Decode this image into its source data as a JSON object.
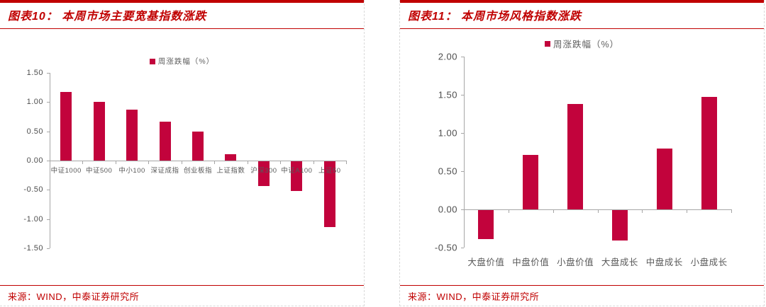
{
  "accent_color": "#C00000",
  "bar_color": "#C2033C",
  "panels": [
    {
      "title": "图表10：  本周市场主要宽基指数涨跌",
      "legend_label": "周涨跌幅（%）",
      "source": "来源：WIND，中泰证券研究所",
      "chart_data": {
        "type": "bar",
        "title": "本周市场主要宽基指数涨跌",
        "series_name": "周涨跌幅（%）",
        "categories": [
          "中证1000",
          "中证500",
          "中小100",
          "深证成指",
          "创业板指",
          "上证指数",
          "沪深300",
          "中证A100",
          "上证50"
        ],
        "values": [
          1.17,
          1.0,
          0.87,
          0.67,
          0.5,
          0.11,
          -0.42,
          -0.51,
          -1.12
        ],
        "ylabel": "",
        "xlabel": "",
        "ylim": [
          -1.5,
          1.5
        ],
        "ytick_step": 0.5,
        "grid": false,
        "legend_position": "top-center"
      }
    },
    {
      "title": "图表11：  本周市场风格指数涨跌",
      "legend_label": "周涨跌幅（%）",
      "source": "来源：WIND，中泰证券研究所",
      "chart_data": {
        "type": "bar",
        "title": "本周市场风格指数涨跌",
        "series_name": "周涨跌幅（%）",
        "categories": [
          "大盘价值",
          "中盘价值",
          "小盘价值",
          "大盘成长",
          "中盘成长",
          "小盘成长"
        ],
        "values": [
          -0.38,
          0.71,
          1.38,
          -0.4,
          0.8,
          1.47
        ],
        "ylabel": "",
        "xlabel": "",
        "ylim": [
          -0.5,
          2.0
        ],
        "ytick_step": 0.5,
        "grid": false,
        "legend_position": "top-center"
      }
    }
  ]
}
